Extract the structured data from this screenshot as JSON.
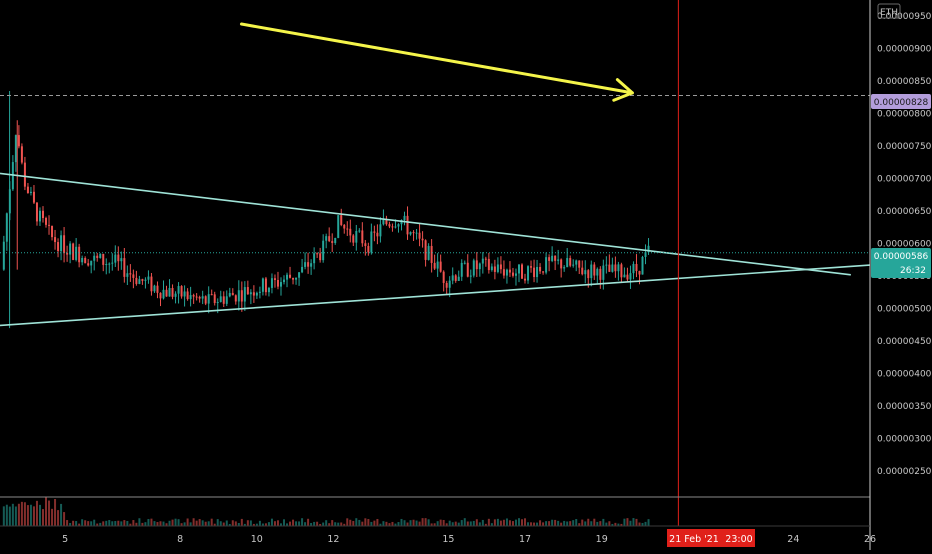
{
  "app": {
    "quote_currency": "ETH",
    "cursor_date": "21 Feb '21",
    "cursor_time": "23:00",
    "last_price": "0.00000586",
    "countdown": "26:32",
    "marked_price": "0.00000828"
  },
  "colors": {
    "background": "#000000",
    "up": "#26a69a",
    "down": "#ef5350",
    "trendline": "#9fe3d7",
    "arrow": "#f5f54a",
    "cursor": "#e0201a",
    "last_price_badge": "#26a69a",
    "marked_price_badge": "#b39ddb",
    "axis_text": "#c8c8c8"
  },
  "chart_data": {
    "type": "candlestick",
    "x_axis": {
      "tick_labels": [
        "5",
        "8",
        "10",
        "12",
        "15",
        "17",
        "19",
        "21 Feb '21",
        "24",
        "26"
      ],
      "tick_days": [
        5,
        8,
        10,
        12,
        15,
        17,
        19,
        21,
        24,
        26
      ],
      "range_days": [
        3.3,
        26
      ]
    },
    "y_axis": {
      "tick_labels": [
        "0.00000950",
        "0.00000900",
        "0.00000850",
        "0.00000800",
        "0.00000750",
        "0.00000700",
        "0.00000650",
        "0.00000600",
        "0.00000550",
        "0.00000500",
        "0.00000450",
        "0.00000400",
        "0.00000350",
        "0.00000300",
        "0.00000250"
      ],
      "tick_values": [
        950,
        900,
        850,
        800,
        750,
        700,
        650,
        600,
        550,
        500,
        450,
        400,
        350,
        300,
        250
      ],
      "unit_scale": 1e-08,
      "range": [
        210,
        975
      ]
    },
    "price_path": [
      [
        3.4,
        560
      ],
      [
        3.8,
        780
      ],
      [
        4.0,
        700
      ],
      [
        4.3,
        650
      ],
      [
        4.7,
        610
      ],
      [
        5.2,
        590
      ],
      [
        5.8,
        575
      ],
      [
        6.4,
        570
      ],
      [
        7.0,
        545
      ],
      [
        7.6,
        528
      ],
      [
        8.2,
        520
      ],
      [
        8.8,
        510
      ],
      [
        9.4,
        520
      ],
      [
        10.0,
        530
      ],
      [
        10.6,
        540
      ],
      [
        11.2,
        555
      ],
      [
        11.8,
        590
      ],
      [
        12.2,
        630
      ],
      [
        12.6,
        615
      ],
      [
        13.0,
        600
      ],
      [
        13.4,
        630
      ],
      [
        13.8,
        640
      ],
      [
        14.2,
        610
      ],
      [
        14.6,
        580
      ],
      [
        15.0,
        545
      ],
      [
        15.5,
        560
      ],
      [
        16.0,
        565
      ],
      [
        16.5,
        560
      ],
      [
        17.0,
        555
      ],
      [
        17.5,
        565
      ],
      [
        18.0,
        570
      ],
      [
        18.5,
        560
      ],
      [
        19.0,
        558
      ],
      [
        19.5,
        555
      ],
      [
        20.0,
        560
      ],
      [
        20.3,
        586
      ]
    ],
    "trendlines": [
      {
        "role": "upper",
        "start": [
          3.3,
          708
        ],
        "end": [
          25.5,
          552
        ]
      },
      {
        "role": "lower",
        "start": [
          3.3,
          474
        ],
        "end": [
          26.0,
          567
        ]
      }
    ],
    "marked_price_level": 828,
    "last_price_level": 586,
    "cursor_day": 21.0,
    "arrow": {
      "from": [
        9.6,
        938
      ],
      "to": [
        19.8,
        832
      ]
    }
  }
}
